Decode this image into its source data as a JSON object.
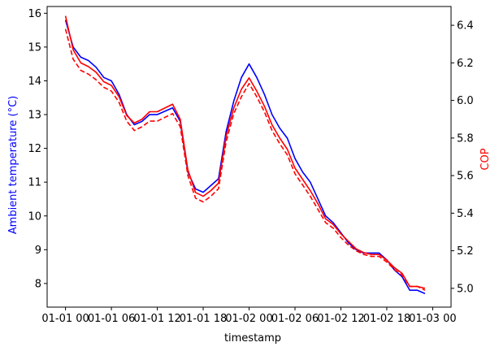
{
  "chart_data": {
    "type": "line",
    "xlabel": "timestamp",
    "ylabel_left": "Ambient temperature (°C)",
    "ylabel_right": "COP",
    "colors": {
      "temperature": "#0000ff",
      "cop": "#ff0000",
      "axis_left_label": "#0000ff",
      "axis_right_label": "#ff0000"
    },
    "x_ticks": [
      "01-01 00",
      "01-01 06",
      "01-01 12",
      "01-01 18",
      "01-02 00",
      "01-02 06",
      "01-02 12",
      "01-02 18",
      "01-03 00"
    ],
    "x_range_hours": [
      -2.4,
      50.4
    ],
    "y_left_ticks": [
      8,
      9,
      10,
      11,
      12,
      13,
      14,
      15,
      16
    ],
    "y_left_range": [
      7.3,
      16.2
    ],
    "y_right_ticks": [
      5.0,
      5.2,
      5.4,
      5.6,
      5.8,
      6.0,
      6.2,
      6.4
    ],
    "y_right_range": [
      4.9,
      6.5
    ],
    "x_hours": [
      0,
      1,
      2,
      3,
      4,
      5,
      6,
      7,
      8,
      9,
      10,
      11,
      12,
      13,
      14,
      15,
      16,
      17,
      18,
      19,
      20,
      21,
      22,
      23,
      24,
      25,
      26,
      27,
      28,
      29,
      30,
      31,
      32,
      33,
      34,
      35,
      36,
      37,
      38,
      39,
      40,
      41,
      42,
      43,
      44,
      45,
      46,
      47
    ],
    "series": [
      {
        "name": "Ambient temperature",
        "axis": "left",
        "style": "solid",
        "color": "#0000ff",
        "values": [
          15.8,
          15.0,
          14.7,
          14.6,
          14.4,
          14.1,
          14.0,
          13.6,
          13.0,
          12.7,
          12.8,
          13.0,
          13.0,
          13.1,
          13.2,
          12.8,
          11.3,
          10.8,
          10.7,
          10.9,
          11.1,
          12.5,
          13.4,
          14.1,
          14.5,
          14.1,
          13.6,
          13.0,
          12.6,
          12.3,
          11.7,
          11.3,
          11.0,
          10.5,
          10.0,
          9.8,
          9.5,
          9.2,
          9.0,
          8.9,
          8.9,
          8.9,
          8.7,
          8.4,
          8.2,
          7.8,
          7.8,
          7.7
        ]
      },
      {
        "name": "COP",
        "axis": "right",
        "style": "solid",
        "color": "#ff0000",
        "values": [
          6.45,
          6.27,
          6.2,
          6.18,
          6.15,
          6.1,
          6.08,
          6.02,
          5.92,
          5.88,
          5.9,
          5.94,
          5.94,
          5.96,
          5.98,
          5.9,
          5.63,
          5.51,
          5.49,
          5.52,
          5.56,
          5.81,
          5.96,
          6.06,
          6.12,
          6.05,
          5.97,
          5.87,
          5.8,
          5.74,
          5.64,
          5.58,
          5.52,
          5.45,
          5.37,
          5.34,
          5.29,
          5.25,
          5.21,
          5.19,
          5.18,
          5.18,
          5.15,
          5.11,
          5.08,
          5.01,
          5.01,
          5.0
        ]
      },
      {
        "name": "COP (dashed)",
        "axis": "right",
        "style": "dashed",
        "color": "#ff0000",
        "values": [
          6.38,
          6.22,
          6.16,
          6.14,
          6.11,
          6.07,
          6.05,
          5.99,
          5.89,
          5.84,
          5.86,
          5.89,
          5.89,
          5.91,
          5.93,
          5.86,
          5.6,
          5.48,
          5.46,
          5.49,
          5.53,
          5.78,
          5.93,
          6.02,
          6.09,
          6.02,
          5.94,
          5.84,
          5.77,
          5.71,
          5.61,
          5.55,
          5.49,
          5.42,
          5.35,
          5.32,
          5.27,
          5.23,
          5.2,
          5.18,
          5.17,
          5.17,
          5.14,
          5.1,
          5.07,
          5.01,
          5.01,
          4.99
        ]
      }
    ]
  }
}
